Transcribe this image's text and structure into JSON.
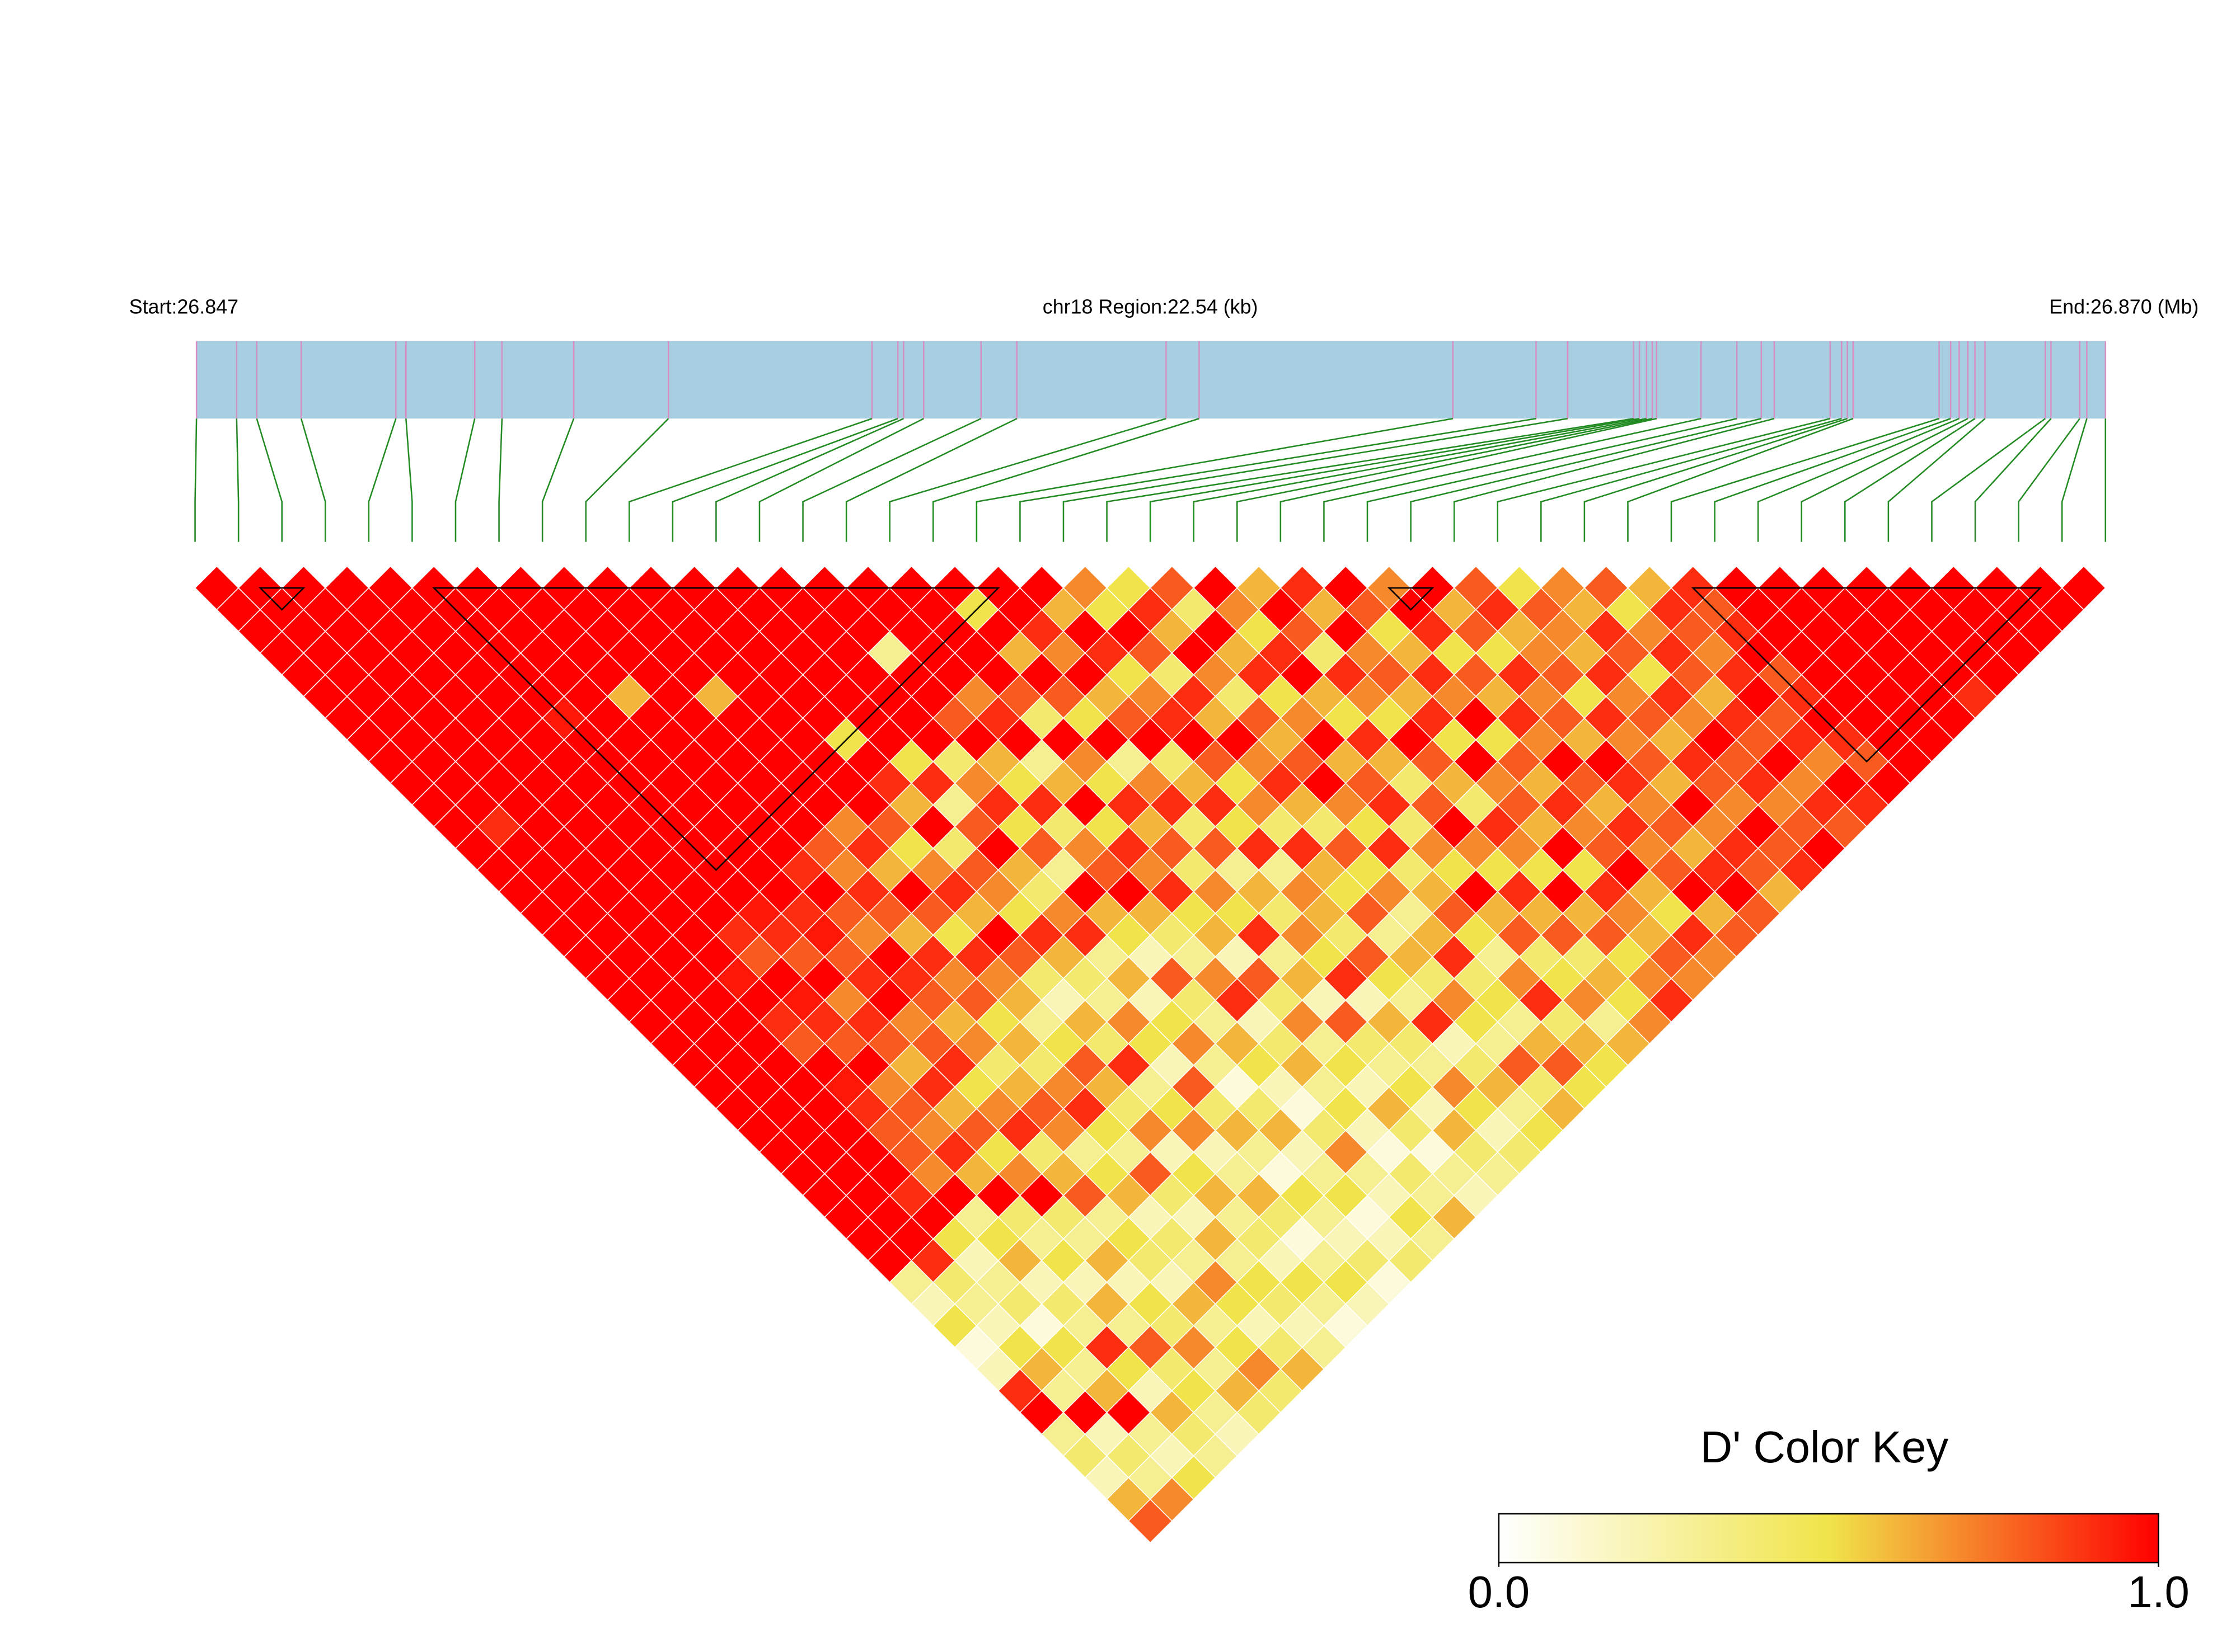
{
  "chart_data": {
    "type": "ld_heatmap",
    "start_label": "Start:26.847",
    "region_label": "chr18 Region:22.54 (kb)",
    "end_label": "End:26.870 (Mb)",
    "key_title": "D' Color Key",
    "key_ticks": [
      {
        "value": 0,
        "label": "0.0"
      },
      {
        "value": 1,
        "label": "1.0"
      }
    ],
    "clim": [
      0,
      1
    ],
    "colormap": [
      {
        "value": 0,
        "color": "#ffffff"
      },
      {
        "value": 0.5,
        "color": "#f0e44a"
      },
      {
        "value": 1,
        "color": "#ff0000"
      }
    ],
    "bar_color": "#a8cee2",
    "bar_line_color": "#d58fc2",
    "connector_color": "#228b22",
    "positions_kb": [
      0,
      0.474,
      0.711,
      1.236,
      2.354,
      2.473,
      3.285,
      3.607,
      4.454,
      5.572,
      7.976,
      8.281,
      8.349,
      8.586,
      9.263,
      9.687,
      11.448,
      11.838,
      14.835,
      15.817,
      16.19,
      16.969,
      17.037,
      17.121,
      17.189,
      17.24,
      17.765,
      18.188,
      18.476,
      18.629,
      19.289,
      19.424,
      19.492,
      19.56,
      20.576,
      20.712,
      20.813,
      20.915,
      20.999,
      21.118,
      21.829,
      21.897,
      22.236,
      22.32,
      22.54
    ],
    "blocks": [
      [
        1,
        3
      ],
      [
        5,
        19
      ],
      [
        27,
        29
      ],
      [
        34,
        43
      ]
    ],
    "dprime": [
      [
        1,
        1,
        1,
        1,
        1,
        1,
        1,
        1,
        1,
        1,
        1,
        1,
        1,
        1,
        1,
        1,
        1,
        1,
        1,
        1,
        1,
        1,
        1,
        1,
        1,
        1,
        1,
        1,
        1,
        1,
        1,
        1,
        0.3,
        0.2,
        0.5,
        0.1,
        0.2,
        0.9,
        1,
        0.3,
        0.4,
        0.2,
        0.6,
        0.8
      ],
      [
        1,
        1,
        1,
        1,
        1,
        1,
        1,
        1,
        1,
        1,
        1,
        0.9,
        1,
        1,
        1,
        1,
        1,
        1,
        1,
        1,
        1,
        1,
        1,
        1,
        1,
        1,
        1,
        1,
        1,
        1,
        1,
        0.9,
        0.4,
        0.3,
        0.2,
        0.5,
        0.6,
        0.3,
        1,
        0.2,
        0.4,
        0.3,
        0.7
      ],
      [
        1,
        1,
        1,
        1,
        1,
        1,
        1,
        1,
        1,
        1,
        1,
        1,
        1,
        1,
        1,
        1,
        1,
        1,
        1,
        1,
        1,
        1,
        1,
        1,
        1,
        1,
        1,
        1,
        0.9,
        1,
        0.5,
        0.2,
        0.3,
        0.4,
        0.1,
        0.5,
        0.3,
        0.6,
        1,
        0.3,
        0.2,
        0.5
      ],
      [
        1,
        1,
        1,
        1,
        1,
        1,
        1,
        1,
        1,
        1,
        1,
        1,
        1,
        1,
        1,
        1,
        1,
        1,
        0.95,
        1,
        0.9,
        0.8,
        1,
        0.95,
        0.9,
        0.8,
        0.8,
        0.7,
        1,
        0.3,
        0.5,
        0.6,
        0.2,
        0.4,
        0.3,
        0.9,
        0.5,
        0.2,
        0.6,
        0.4,
        0.3
      ],
      [
        1,
        1,
        1,
        1,
        1,
        1,
        1,
        1,
        1,
        1,
        1,
        1,
        1,
        1,
        1,
        1,
        0.9,
        0.8,
        1,
        0.95,
        0.9,
        0.8,
        1,
        0.7,
        0.8,
        0.7,
        0.9,
        0.6,
        1,
        0.4,
        0.3,
        0.5,
        0.2,
        0.6,
        0.3,
        0.8,
        0.4,
        0.5,
        0.3,
        0.2
      ],
      [
        1,
        1,
        1,
        1,
        1,
        1,
        0.95,
        1,
        1,
        1,
        1,
        1,
        1,
        1,
        1,
        0.95,
        0.9,
        0.8,
        1,
        0.7,
        0.9,
        0.8,
        0.6,
        0.9,
        0.6,
        0.8,
        0.5,
        0.7,
        1,
        0.4,
        0.3,
        0.6,
        0.2,
        0.5,
        0.4,
        0.7,
        0.3,
        0.6,
        0.4
      ],
      [
        1,
        1,
        1,
        1,
        1,
        1,
        1,
        1,
        1,
        1,
        1,
        1,
        1,
        1,
        1,
        0.9,
        0.95,
        0.8,
        0.9,
        1,
        0.7,
        0.8,
        0.9,
        0.5,
        0.7,
        0.9,
        0.4,
        0.6,
        0.8,
        0.3,
        0.5,
        0.4,
        0.2,
        0.6,
        0.3,
        0.5,
        0.7,
        0.4
      ],
      [
        1,
        1,
        1,
        1,
        1,
        0.6,
        1,
        1,
        1,
        1,
        1,
        1,
        1,
        0.9,
        1,
        0.8,
        0.7,
        1,
        0.9,
        0.8,
        0.6,
        0.7,
        0.4,
        0.6,
        0.8,
        0.7,
        0.3,
        0.5,
        0.6,
        0.2,
        0.4,
        0.3,
        0.7,
        0.5,
        0.2,
        0.4,
        0.6
      ],
      [
        1,
        1,
        1,
        1,
        1,
        1,
        1,
        1,
        1,
        1,
        1,
        1,
        0.8,
        0.7,
        0.9,
        0.8,
        0.6,
        0.9,
        0.7,
        0.8,
        0.5,
        0.6,
        0.4,
        0.7,
        0.9,
        0.5,
        0.3,
        0.8,
        0.4,
        0.2,
        0.6,
        0.3,
        0.5,
        0.4,
        0.2,
        0.3
      ],
      [
        1,
        1,
        1,
        1,
        1,
        0.6,
        1,
        1,
        1,
        1,
        1,
        0.7,
        0.9,
        0.6,
        1,
        0.8,
        0.5,
        0.9,
        0.7,
        0.6,
        0.3,
        0.5,
        0.8,
        0.6,
        0.4,
        0.7,
        0.2,
        0.5,
        0.6,
        0.3,
        0.4,
        0.2,
        0.5,
        0.3,
        0.1
      ],
      [
        1,
        1,
        1,
        1,
        1,
        1,
        1,
        1,
        1,
        1,
        1,
        0.8,
        0.5,
        0.7,
        0.9,
        0.6,
        1,
        0.8,
        0.4,
        0.2,
        0.6,
        0.4,
        0.9,
        0.3,
        0.5,
        0.7,
        0.2,
        0.3,
        0.6,
        0.4,
        0.1,
        0.3,
        0.5,
        0.2
      ],
      [
        1,
        1,
        1,
        1,
        1,
        1,
        1,
        0.5,
        1,
        0.9,
        0.6,
        1,
        0.4,
        0.8,
        0.7,
        0.5,
        0.9,
        0.6,
        0.4,
        0.3,
        0.7,
        0.5,
        0.2,
        0.8,
        0.4,
        0.6,
        0.3,
        0.1,
        0.5,
        0.3,
        0.2,
        0.4,
        0.1
      ],
      [
        1,
        1,
        1,
        1,
        1,
        1,
        1,
        1,
        0.5,
        0.9,
        0.3,
        0.8,
        1,
        0.6,
        0.4,
        0.7,
        0.9,
        0.3,
        0.6,
        0.2,
        0.5,
        0.7,
        0.3,
        0.1,
        0.4,
        0.6,
        0.2,
        0.3,
        0.5,
        0.1,
        0.2,
        0.4
      ],
      [
        1,
        1,
        1,
        1,
        1,
        1,
        1,
        1,
        0.4,
        0.7,
        0.9,
        0.5,
        0.8,
        0.3,
        1,
        0.6,
        0.5,
        0.2,
        0.8,
        0.4,
        0.3,
        0.6,
        0.5,
        0.2,
        0.1,
        0.4,
        0.7,
        0.3,
        0.2,
        0.5,
        0.3
      ],
      [
        1,
        1,
        1,
        0.3,
        1,
        1,
        0.8,
        1,
        0.6,
        0.5,
        0.9,
        0.4,
        0.7,
        0.8,
        1,
        0.6,
        0.4,
        0.3,
        0.7,
        0.9,
        0.2,
        0.4,
        0.6,
        0.3,
        0.5,
        0.2,
        0.1,
        0.4,
        0.3,
        0.6
      ],
      [
        1,
        1,
        1,
        1,
        1,
        0.7,
        0.9,
        1,
        0.3,
        0.6,
        1,
        0.5,
        0.9,
        0.7,
        0.9,
        0.5,
        0.6,
        0.2,
        0.8,
        0.4,
        0.7,
        0.3,
        0.5,
        0.2,
        0.6,
        0.4,
        0.1,
        0.3,
        0.2
      ],
      [
        1,
        1,
        1,
        1,
        1,
        0.8,
        0.4,
        1,
        0.7,
        0.5,
        0.9,
        0.6,
        0.8,
        0.4,
        0.7,
        0.5,
        0.9,
        0.3,
        0.6,
        0.2,
        0.8,
        0.4,
        0.3,
        0.5,
        0.2,
        0.6,
        0.4,
        0.3
      ],
      [
        1,
        0.5,
        1,
        0.6,
        1,
        0.8,
        0.5,
        1,
        0.3,
        0.7,
        0.9,
        0.4,
        0.8,
        0.3,
        0.6,
        0.4,
        0.7,
        0.5,
        0.9,
        0.2,
        0.6,
        0.4,
        0.3,
        0.7,
        0.5,
        0.2,
        0.4
      ],
      [
        1,
        1,
        0.9,
        0.7,
        1,
        0.6,
        0.8,
        1,
        0.4,
        0.6,
        0.9,
        0.5,
        0.9,
        0.3,
        0.7,
        0.6,
        0.4,
        0.8,
        0.5,
        0.3,
        0.9,
        0.2,
        0.4,
        0.6,
        0.3,
        0.5
      ],
      [
        1,
        0.6,
        1,
        0.9,
        0.5,
        0.7,
        0.9,
        1,
        0.8,
        0.5,
        0.7,
        0.4,
        0.9,
        0.6,
        0.5,
        0.8,
        0.3,
        0.6,
        0.4,
        0.7,
        0.5,
        0.3,
        0.8,
        0.4,
        0.6
      ],
      [
        0.7,
        0.5,
        1,
        0.8,
        0.4,
        0.9,
        0.6,
        1,
        0.7,
        0.9,
        0.6,
        0.4,
        0.8,
        0.5,
        0.7,
        0.3,
        0.6,
        0.9,
        0.4,
        0.5,
        0.3,
        0.6,
        0.8,
        0.5
      ],
      [
        0.5,
        0.9,
        0.6,
        1,
        0.7,
        0.4,
        0.8,
        0.6,
        0.8,
        1,
        0.7,
        0.5,
        0.9,
        0.4,
        0.6,
        0.8,
        0.5,
        0.3,
        0.7,
        0.9,
        0.4,
        0.6,
        0.5
      ],
      [
        0.8,
        0.4,
        1,
        0.6,
        0.9,
        0.5,
        0.7,
        1,
        0.6,
        0.8,
        0.9,
        0.4,
        0.7,
        0.5,
        1,
        0.6,
        0.8,
        0.4,
        0.5,
        0.7,
        0.3,
        0.6
      ],
      [
        1,
        0.7,
        0.5,
        0.9,
        1,
        0.6,
        0.5,
        0.9,
        0.6,
        0.4,
        0.8,
        1,
        0.7,
        0.5,
        0.9,
        0.6,
        0.8,
        0.4,
        0.6,
        0.5,
        0.7
      ],
      [
        0.6,
        1,
        0.8,
        0.4,
        0.9,
        0.7,
        0.5,
        1,
        0.8,
        0.6,
        0.4,
        0.9,
        0.7,
        0.5,
        1,
        0.6,
        0.8,
        0.5,
        0.7,
        0.9
      ],
      [
        0.9,
        0.6,
        1,
        0.7,
        0.8,
        0.6,
        0.9,
        0.5,
        1,
        0.7,
        0.8,
        0.6,
        1,
        0.5,
        0.9,
        0.7,
        0.6,
        0.8,
        0.7
      ],
      [
        1,
        0.8,
        0.5,
        0.6,
        0.9,
        0.7,
        1,
        0.5,
        0.8,
        0.6,
        0.9,
        0.7,
        0.8,
        1,
        0.6,
        0.5,
        0.9,
        0.7
      ],
      [
        0.7,
        1,
        0.9,
        0.5,
        0.8,
        0.6,
        0.9,
        0.7,
        1,
        0.8,
        0.6,
        0.9,
        0.7,
        0.8,
        1,
        0.6,
        0.8
      ],
      [
        1,
        0.6,
        0.8,
        0.5,
        0.9,
        0.7,
        0.8,
        0.6,
        1,
        0.9,
        0.7,
        0.8,
        0.6,
        0.9,
        1,
        0.8
      ],
      [
        0.8,
        0.9,
        0.6,
        0.7,
        0.8,
        0.5,
        0.9,
        0.7,
        0.8,
        0.6,
        1,
        0.7,
        0.9,
        0.8,
        0.6
      ],
      [
        0.5,
        0.8,
        0.7,
        0.6,
        0.9,
        0.7,
        0.8,
        0.6,
        0.9,
        0.8,
        0.7,
        1,
        0.8,
        0.9
      ],
      [
        0.7,
        0.6,
        0.9,
        0.8,
        0.5,
        0.9,
        0.7,
        1,
        0.8,
        0.9,
        0.7,
        0.8,
        1
      ],
      [
        0.8,
        0.5,
        0.7,
        0.9,
        0.8,
        0.6,
        0.9,
        0.8,
        1,
        0.7,
        0.9,
        0.8
      ],
      [
        0.6,
        0.9,
        0.8,
        0.7,
        0.9,
        1,
        0.8,
        0.9,
        0.7,
        1,
        0.9
      ],
      [
        0.9,
        0.8,
        0.9,
        1,
        0.8,
        0.9,
        1,
        0.9,
        0.8,
        1
      ],
      [
        1,
        1,
        1,
        1,
        1,
        1,
        1,
        1,
        1
      ],
      [
        1,
        1,
        1,
        1,
        1,
        1,
        1,
        1
      ],
      [
        1,
        1,
        1,
        1,
        1,
        1,
        1
      ],
      [
        1,
        1,
        1,
        1,
        1,
        0.9
      ],
      [
        1,
        1,
        1,
        1,
        1
      ],
      [
        1,
        1,
        1,
        1
      ],
      [
        1,
        1,
        1
      ],
      [
        1,
        1
      ],
      [
        1
      ]
    ]
  }
}
